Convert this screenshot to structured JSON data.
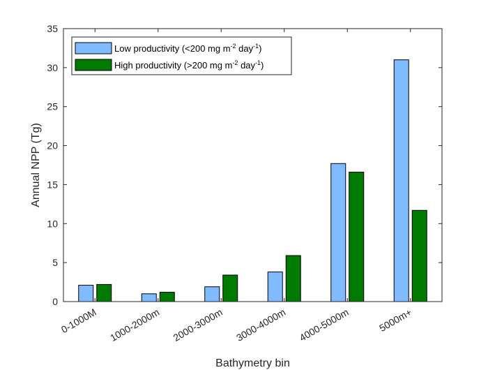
{
  "chart_data": {
    "type": "bar",
    "xlabel": "Bathymetry bin",
    "ylabel": "Annual NPP (Tg)",
    "ylim": [
      0,
      35
    ],
    "yticks": [
      0,
      5,
      10,
      15,
      20,
      25,
      30,
      35
    ],
    "categories": [
      "0-1000M",
      "1000-2000m",
      "2000-3000m",
      "3000-4000m",
      "4000-5000m",
      "5000m+"
    ],
    "series": [
      {
        "name_parts": [
          "Low productivity (<200 mg m",
          "-2",
          " day",
          "-1",
          ")"
        ],
        "color": "#80bbff",
        "values": [
          2.1,
          1.0,
          1.9,
          3.8,
          17.7,
          31.0
        ]
      },
      {
        "name_parts": [
          "High productivity (>200 mg m",
          "-2",
          " day",
          "-1",
          ")"
        ],
        "color": "#007a00",
        "values": [
          2.2,
          1.2,
          3.4,
          5.9,
          16.6,
          11.7
        ]
      }
    ],
    "legend_position": "top-left",
    "grid": false
  }
}
